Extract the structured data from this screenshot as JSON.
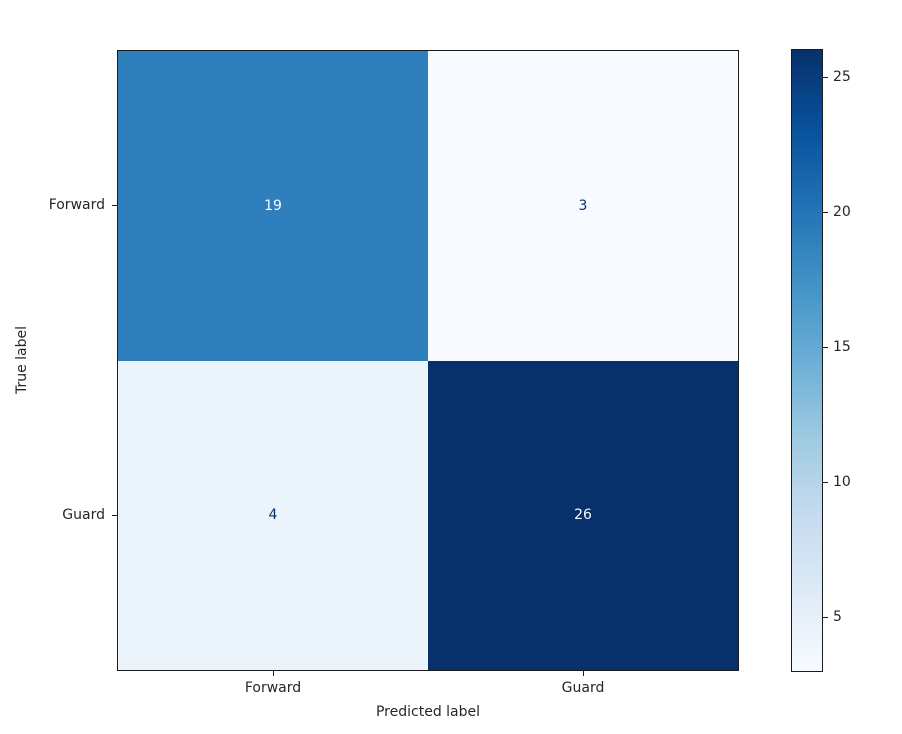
{
  "figure": {
    "background": "#ffffff",
    "text_color": "#262626",
    "spine_color": "#1a1a1a"
  },
  "chart_data": {
    "type": "heatmap",
    "subtype": "confusion_matrix",
    "title": "",
    "xlabel": "Predicted label",
    "ylabel": "True label",
    "x_categories": [
      "Forward",
      "Guard"
    ],
    "y_categories": [
      "Forward",
      "Guard"
    ],
    "matrix": [
      [
        19,
        3
      ],
      [
        4,
        26
      ]
    ],
    "cells": [
      {
        "true_label": "Forward",
        "predicted_label": "Forward",
        "value": "19",
        "bg": "#2f7fbc",
        "fg": "#f7fbff"
      },
      {
        "true_label": "Forward",
        "predicted_label": "Guard",
        "value": "3",
        "bg": "#f7fbff",
        "fg": "#08306b"
      },
      {
        "true_label": "Guard",
        "predicted_label": "Forward",
        "value": "4",
        "bg": "#ebf3fb",
        "fg": "#08306b"
      },
      {
        "true_label": "Guard",
        "predicted_label": "Guard",
        "value": "26",
        "bg": "#08306b",
        "fg": "#f7fbff"
      }
    ],
    "colormap": "Blues",
    "grid": false,
    "legend_position": "right-colorbar",
    "colorbar": {
      "vmin": 3,
      "vmax": 26,
      "ticks": [
        "5",
        "10",
        "15",
        "20",
        "25"
      ],
      "tick_values": [
        5,
        10,
        15,
        20,
        25
      ],
      "gradient_top_to_bottom": [
        "#08306b",
        "#08519c",
        "#2171b5",
        "#4292c6",
        "#6baed6",
        "#9ecae1",
        "#c6dbef",
        "#deebf7",
        "#f7fbff"
      ]
    }
  }
}
